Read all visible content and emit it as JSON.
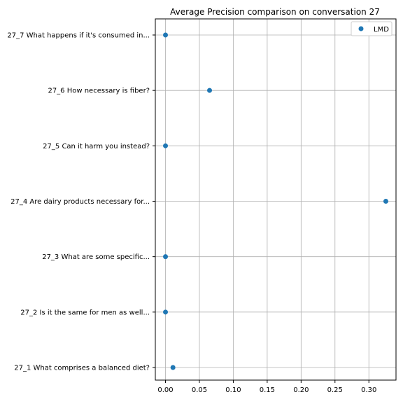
{
  "chart_data": {
    "type": "scatter",
    "title": "Average Precision comparison on conversation 27",
    "xlabel": "",
    "ylabel": "",
    "xlim": [
      -0.015,
      0.34
    ],
    "xticks": [
      0.0,
      0.05,
      0.1,
      0.15,
      0.2,
      0.25,
      0.3
    ],
    "xtick_labels": [
      "0.00",
      "0.05",
      "0.10",
      "0.15",
      "0.20",
      "0.25",
      "0.30"
    ],
    "categories": [
      "27_1 What comprises a balanced diet?",
      "27_2 Is it the same for men as well...",
      "27_3 What are some specific...",
      "27_4 Are dairy products necessary for...",
      "27_5 Can it harm you instead?",
      "27_6 How necessary is fiber?",
      "27_7 What happens if it's consumed in..."
    ],
    "series": [
      {
        "name": "LMD",
        "values": [
          0.011,
          0.0,
          0.0,
          0.325,
          0.0,
          0.065,
          0.0
        ],
        "color": "#1f77b4"
      }
    ],
    "grid": true,
    "legend_position": "top-right"
  }
}
